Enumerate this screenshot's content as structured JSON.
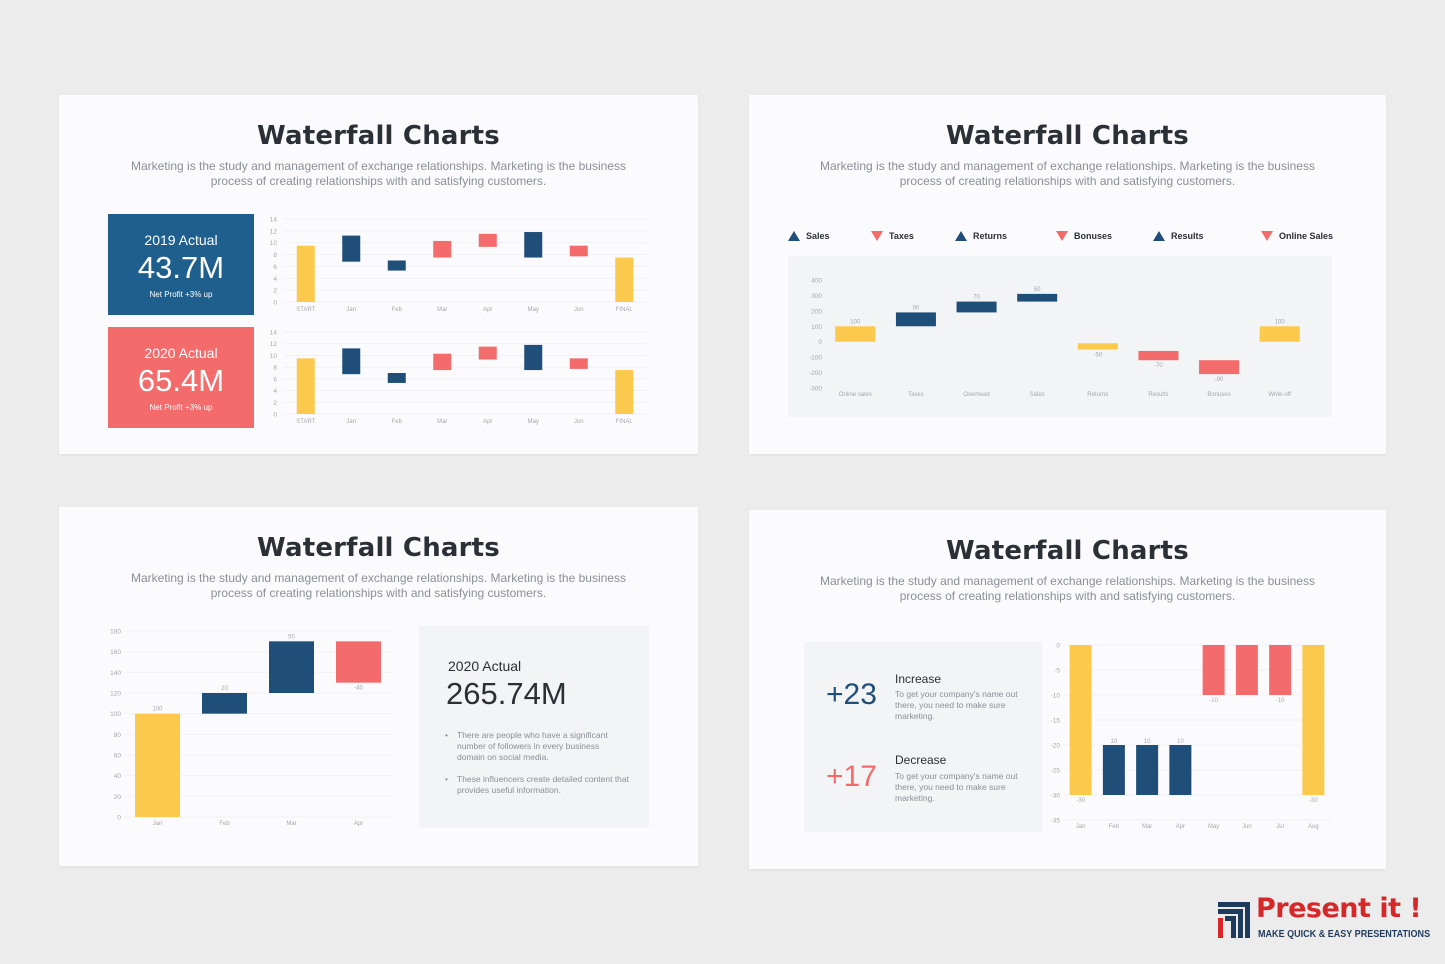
{
  "slides": {
    "title": "Waterfall Charts",
    "subtitle_line1": "Marketing is the study and management of exchange relationships. Marketing is the business",
    "subtitle_line2": "process of creating relationships with and satisfying customers."
  },
  "colors": {
    "navy": "#1f4e79",
    "coral": "#f36b6b",
    "yellow": "#fbc94b"
  },
  "slide1": {
    "kpi1": {
      "label": "2019 Actual",
      "value": "43.7M",
      "sub": "Net Profit +3% up",
      "color": "#1f5f8e"
    },
    "kpi2": {
      "label": "2020 Actual",
      "value": "65.4M",
      "sub": "Net Profit +3% up",
      "color": "#f36b6b"
    }
  },
  "slide2": {
    "legend": [
      {
        "label": "Sales",
        "icon": "triangle-up-icon"
      },
      {
        "label": "Taxes",
        "icon": "triangle-down-icon"
      },
      {
        "label": "Returns",
        "icon": "triangle-up-icon"
      },
      {
        "label": "Bonuses",
        "icon": "triangle-down-icon"
      },
      {
        "label": "Results",
        "icon": "triangle-up-icon"
      },
      {
        "label": "Online Sales",
        "icon": "triangle-down-icon"
      }
    ]
  },
  "slide3": {
    "panel": {
      "label": "2020 Actual",
      "value": "265.74M",
      "bullet1": "There are people who have a significant number of followers in every business domain on social media.",
      "bullet2": "These influencers create detailed content that provides useful information."
    }
  },
  "slide4": {
    "increase": {
      "value": "+23",
      "title": "Increase",
      "desc": "To get your company's name out there, you need to make sure marketing."
    },
    "decrease": {
      "value": "+17",
      "title": "Decrease",
      "desc": "To get your company's name out there, you need to make sure marketing."
    }
  },
  "brand": {
    "name": "Present it !",
    "tagline": "MAKE QUICK & EASY PRESENTATIONS",
    "icon": "bar-chart-logo-icon"
  },
  "chart_data": [
    {
      "id": "s1a",
      "type": "bar",
      "categories": [
        "START",
        "Jan",
        "Feb",
        "Mar",
        "Apr",
        "May",
        "Jun",
        "FINAL"
      ],
      "ylim": [
        0,
        14
      ],
      "yticks": [
        0,
        2,
        4,
        6,
        8,
        10,
        12,
        14
      ],
      "bars": [
        {
          "from": 0,
          "to": 9.5,
          "kind": "total"
        },
        {
          "from": 6.8,
          "to": 11.2,
          "kind": "increase"
        },
        {
          "from": 5.3,
          "to": 7,
          "kind": "increase"
        },
        {
          "from": 7.5,
          "to": 10.3,
          "kind": "decrease"
        },
        {
          "from": 9.3,
          "to": 11.5,
          "kind": "decrease"
        },
        {
          "from": 7.5,
          "to": 11.8,
          "kind": "increase"
        },
        {
          "from": 7.7,
          "to": 9.5,
          "kind": "decrease"
        },
        {
          "from": 0,
          "to": 7.5,
          "kind": "total"
        }
      ]
    },
    {
      "id": "s1b",
      "type": "bar",
      "categories": [
        "START",
        "Jan",
        "Feb",
        "Mar",
        "Apr",
        "May",
        "Jun",
        "FINAL"
      ],
      "ylim": [
        0,
        14
      ],
      "yticks": [
        0,
        2,
        4,
        6,
        8,
        10,
        12,
        14
      ],
      "bars": [
        {
          "from": 0,
          "to": 9.5,
          "kind": "total"
        },
        {
          "from": 6.8,
          "to": 11.2,
          "kind": "increase"
        },
        {
          "from": 5.3,
          "to": 7,
          "kind": "increase"
        },
        {
          "from": 7.5,
          "to": 10.3,
          "kind": "decrease"
        },
        {
          "from": 9.3,
          "to": 11.5,
          "kind": "decrease"
        },
        {
          "from": 7.5,
          "to": 11.8,
          "kind": "increase"
        },
        {
          "from": 7.7,
          "to": 9.5,
          "kind": "decrease"
        },
        {
          "from": 0,
          "to": 7.5,
          "kind": "total"
        }
      ]
    },
    {
      "id": "s2",
      "type": "bar",
      "categories": [
        "Online sales",
        "Taxes",
        "Overhead",
        "Sales",
        "Returns",
        "Results",
        "Bonuses",
        "Write-off"
      ],
      "ylim": [
        -300,
        400
      ],
      "yticks": [
        400,
        300,
        200,
        100,
        0,
        -100,
        -200,
        -300
      ],
      "bars": [
        {
          "from": 0,
          "to": 100,
          "label": "100",
          "kind": "total"
        },
        {
          "from": 100,
          "to": 190,
          "label": "90",
          "kind": "increase"
        },
        {
          "from": 190,
          "to": 260,
          "label": "70",
          "kind": "increase"
        },
        {
          "from": 260,
          "to": 310,
          "label": "50",
          "kind": "increase"
        },
        {
          "from": -50,
          "to": -10,
          "label": "-50",
          "kind": "total"
        },
        {
          "from": -120,
          "to": -60,
          "label": "-70",
          "kind": "decrease"
        },
        {
          "from": -210,
          "to": -120,
          "label": "-90",
          "kind": "decrease"
        },
        {
          "from": 0,
          "to": 100,
          "label": "100",
          "kind": "total"
        }
      ]
    },
    {
      "id": "s3",
      "type": "bar",
      "categories": [
        "Jan",
        "Feb",
        "Mar",
        "Apr"
      ],
      "ylim": [
        0,
        180
      ],
      "yticks": [
        0,
        20,
        40,
        60,
        80,
        100,
        120,
        140,
        160,
        180
      ],
      "bars": [
        {
          "from": 0,
          "to": 100,
          "label": "100",
          "kind": "total"
        },
        {
          "from": 100,
          "to": 120,
          "label": "20",
          "kind": "increase"
        },
        {
          "from": 120,
          "to": 170,
          "label": "50",
          "kind": "increase"
        },
        {
          "from": 130,
          "to": 170,
          "label": "-40",
          "kind": "decrease"
        }
      ]
    },
    {
      "id": "s4",
      "type": "bar",
      "categories": [
        "Jan",
        "Feb",
        "Mar",
        "Apr",
        "May",
        "Jun",
        "Jul",
        "Aug"
      ],
      "ylim": [
        -35,
        0
      ],
      "yticks": [
        0,
        -5,
        -10,
        -15,
        -20,
        -25,
        -30,
        -35
      ],
      "bars": [
        {
          "from": -30,
          "to": 0,
          "label": "-30",
          "kind": "total"
        },
        {
          "from": -30,
          "to": -20,
          "label": "10",
          "kind": "increase"
        },
        {
          "from": -30,
          "to": -20,
          "label": "10",
          "kind": "increase"
        },
        {
          "from": -30,
          "to": -20,
          "label": "10",
          "kind": "increase"
        },
        {
          "from": -10,
          "to": 0,
          "label": "-10",
          "kind": "decrease"
        },
        {
          "from": -10,
          "to": 0,
          "label": "",
          "kind": "decrease"
        },
        {
          "from": -10,
          "to": 0,
          "label": "-10",
          "kind": "decrease"
        },
        {
          "from": -30,
          "to": 0,
          "label": "-30",
          "kind": "total"
        }
      ]
    }
  ]
}
